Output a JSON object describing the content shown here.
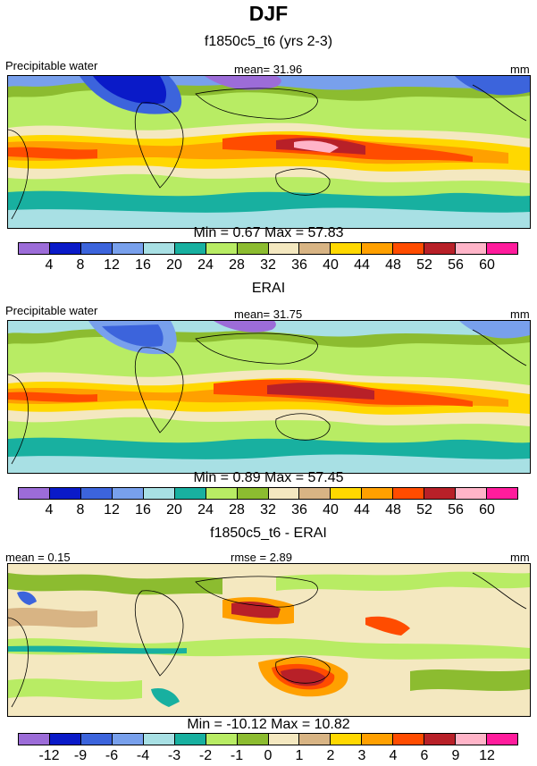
{
  "title": "DJF",
  "panels": [
    {
      "subtitle": "f1850c5_t6 (yrs 2-3)",
      "left_label": "Precipitable water",
      "center_label": "mean=  31.96",
      "right_label": "mm",
      "minmax": "Min =   0.67 Max =  57.83",
      "ticks": [
        "4",
        "8",
        "12",
        "16",
        "20",
        "24",
        "28",
        "32",
        "36",
        "40",
        "44",
        "48",
        "52",
        "56",
        "60"
      ]
    },
    {
      "subtitle": "ERAI",
      "left_label": "Precipitable water",
      "center_label": "mean=  31.75",
      "right_label": "mm",
      "minmax": "Min =   0.89 Max =  57.45",
      "ticks": [
        "4",
        "8",
        "12",
        "16",
        "20",
        "24",
        "28",
        "32",
        "36",
        "40",
        "44",
        "48",
        "52",
        "56",
        "60"
      ]
    },
    {
      "subtitle": "f1850c5_t6 - ERAI",
      "left_label": "mean =   0.15",
      "center_label": "rmse =   2.89",
      "right_label": "mm",
      "minmax": "Min = -10.12 Max =  10.82",
      "ticks": [
        "-12",
        "-9",
        "-6",
        "-4",
        "-3",
        "-2",
        "-1",
        "0",
        "1",
        "2",
        "3",
        "4",
        "6",
        "9",
        "12"
      ]
    }
  ],
  "palette": [
    "#9c6cd8",
    "#0a1ac8",
    "#3c64dc",
    "#78a0ec",
    "#a8e0e4",
    "#18b0a0",
    "#b8ec64",
    "#8cbc30",
    "#f4e8c0",
    "#d8b484",
    "#ffd800",
    "#ffa000",
    "#ff4c00",
    "#b82028",
    "#ffb4c8",
    "#ff1c9c"
  ]
}
